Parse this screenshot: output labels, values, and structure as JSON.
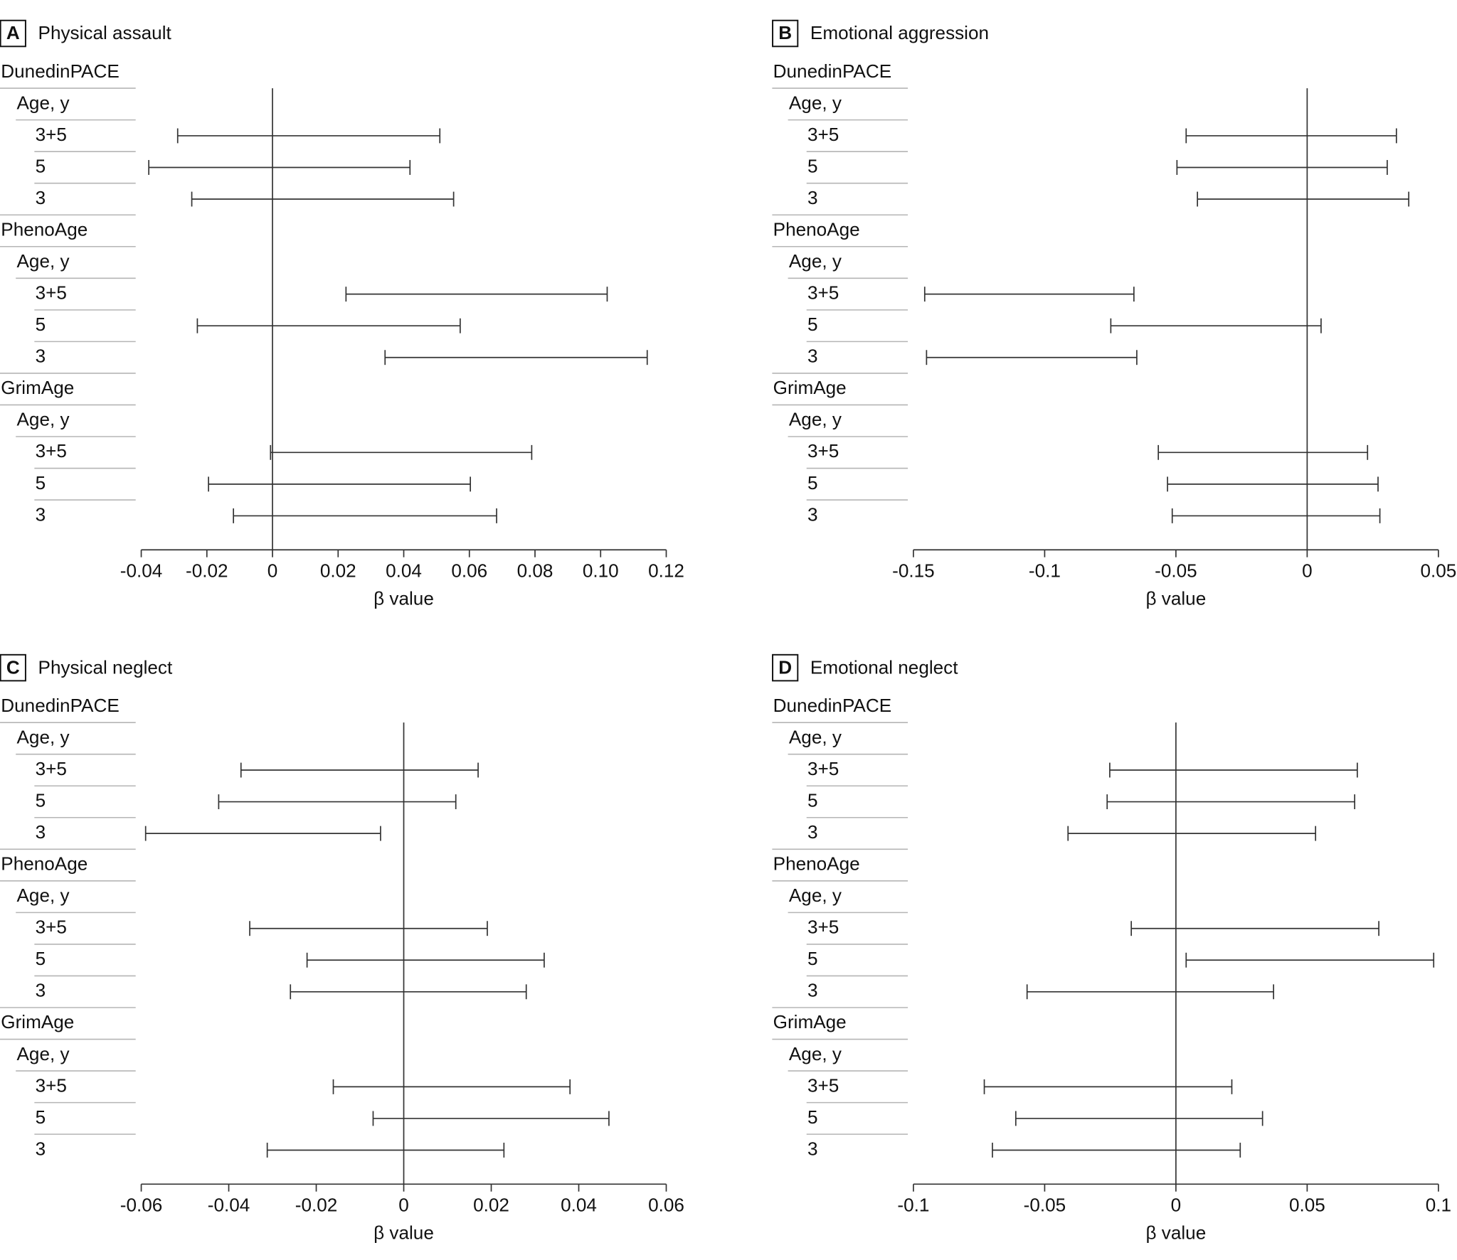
{
  "chart_data": [
    {
      "type": "interval",
      "panel_label": "A",
      "title": "Physical assault",
      "xlabel": "β value",
      "xlim": [
        -0.04,
        0.12
      ],
      "xticks": [
        -0.04,
        -0.02,
        0,
        0.02,
        0.04,
        0.06,
        0.08,
        {
          "value": 0.1,
          "label": "0.10"
        },
        0.12
      ],
      "groups": [
        {
          "name": "DunedinPACE",
          "subheader": "Age, y",
          "rows": [
            {
              "label": "3+5",
              "lower": -0.0289,
              "upper": 0.051
            },
            {
              "label": "5",
              "lower": -0.0377,
              "upper": 0.0419
            },
            {
              "label": "3",
              "lower": -0.0246,
              "upper": 0.0552
            }
          ]
        },
        {
          "name": "PhenoAge",
          "subheader": "Age, y",
          "rows": [
            {
              "label": "3+5",
              "lower": 0.0224,
              "upper": 0.102
            },
            {
              "label": "5",
              "lower": -0.0229,
              "upper": 0.0572
            },
            {
              "label": "3",
              "lower": 0.0343,
              "upper": 0.1142
            }
          ]
        },
        {
          "name": "GrimAge",
          "subheader": "Age, y",
          "rows": [
            {
              "label": "3+5",
              "lower": -0.0006,
              "upper": 0.079
            },
            {
              "label": "5",
              "lower": -0.0195,
              "upper": 0.0603
            },
            {
              "label": "3",
              "lower": -0.0119,
              "upper": 0.0683
            }
          ]
        }
      ]
    },
    {
      "type": "interval",
      "panel_label": "B",
      "title": "Emotional aggression",
      "xlabel": "β value",
      "xlim": [
        -0.15,
        0.05
      ],
      "xticks": [
        -0.15,
        -0.1,
        -0.05,
        0,
        0.05
      ],
      "groups": [
        {
          "name": "DunedinPACE",
          "subheader": "Age, y",
          "rows": [
            {
              "label": "3+5",
              "lower": -0.0461,
              "upper": 0.034
            },
            {
              "label": "5",
              "lower": -0.0496,
              "upper": 0.0305
            },
            {
              "label": "3",
              "lower": -0.0418,
              "upper": 0.0387
            }
          ]
        },
        {
          "name": "PhenoAge",
          "subheader": "Age, y",
          "rows": [
            {
              "label": "3+5",
              "lower": -0.1457,
              "upper": -0.066
            },
            {
              "label": "5",
              "lower": -0.0748,
              "upper": 0.0053
            },
            {
              "label": "3",
              "lower": -0.145,
              "upper": -0.0649
            }
          ]
        },
        {
          "name": "GrimAge",
          "subheader": "Age, y",
          "rows": [
            {
              "label": "3+5",
              "lower": -0.0567,
              "upper": 0.023
            },
            {
              "label": "5",
              "lower": -0.0532,
              "upper": 0.027
            },
            {
              "label": "3",
              "lower": -0.0514,
              "upper": 0.0277
            }
          ]
        }
      ]
    },
    {
      "type": "interval",
      "panel_label": "C",
      "title": "Physical neglect",
      "xlabel": "β value",
      "xlim": [
        -0.06,
        0.06
      ],
      "xticks": [
        -0.06,
        -0.04,
        -0.02,
        0,
        0.02,
        0.04,
        0.06
      ],
      "groups": [
        {
          "name": "DunedinPACE",
          "subheader": "Age, y",
          "rows": [
            {
              "label": "3+5",
              "lower": -0.0372,
              "upper": 0.017
            },
            {
              "label": "5",
              "lower": -0.0423,
              "upper": 0.0119
            },
            {
              "label": "3",
              "lower": -0.059,
              "upper": -0.0053
            }
          ]
        },
        {
          "name": "PhenoAge",
          "subheader": "Age, y",
          "rows": [
            {
              "label": "3+5",
              "lower": -0.0352,
              "upper": 0.0191
            },
            {
              "label": "5",
              "lower": -0.0221,
              "upper": 0.0321
            },
            {
              "label": "3",
              "lower": -0.0259,
              "upper": 0.028
            }
          ]
        },
        {
          "name": "GrimAge",
          "subheader": "Age, y",
          "rows": [
            {
              "label": "3+5",
              "lower": -0.0161,
              "upper": 0.038
            },
            {
              "label": "5",
              "lower": -0.007,
              "upper": 0.0469
            },
            {
              "label": "3",
              "lower": -0.0312,
              "upper": 0.0229
            }
          ]
        }
      ]
    },
    {
      "type": "interval",
      "panel_label": "D",
      "title": "Emotional neglect",
      "xlabel": "β value",
      "xlim": [
        -0.1,
        0.1
      ],
      "xticks": [
        -0.1,
        -0.05,
        0,
        0.05,
        0.1
      ],
      "groups": [
        {
          "name": "DunedinPACE",
          "subheader": "Age, y",
          "rows": [
            {
              "label": "3+5",
              "lower": -0.0252,
              "upper": 0.0691
            },
            {
              "label": "5",
              "lower": -0.0262,
              "upper": 0.0681
            },
            {
              "label": "3",
              "lower": -0.0411,
              "upper": 0.0532
            }
          ]
        },
        {
          "name": "PhenoAge",
          "subheader": "Age, y",
          "rows": [
            {
              "label": "3+5",
              "lower": -0.017,
              "upper": 0.0773
            },
            {
              "label": "5",
              "lower": 0.0039,
              "upper": 0.0982
            },
            {
              "label": "3",
              "lower": -0.0567,
              "upper": 0.0372
            }
          ]
        },
        {
          "name": "GrimAge",
          "subheader": "Age, y",
          "rows": [
            {
              "label": "3+5",
              "lower": -0.073,
              "upper": 0.0213
            },
            {
              "label": "5",
              "lower": -0.061,
              "upper": 0.033
            },
            {
              "label": "3",
              "lower": -0.0699,
              "upper": 0.0245
            }
          ]
        }
      ]
    }
  ]
}
